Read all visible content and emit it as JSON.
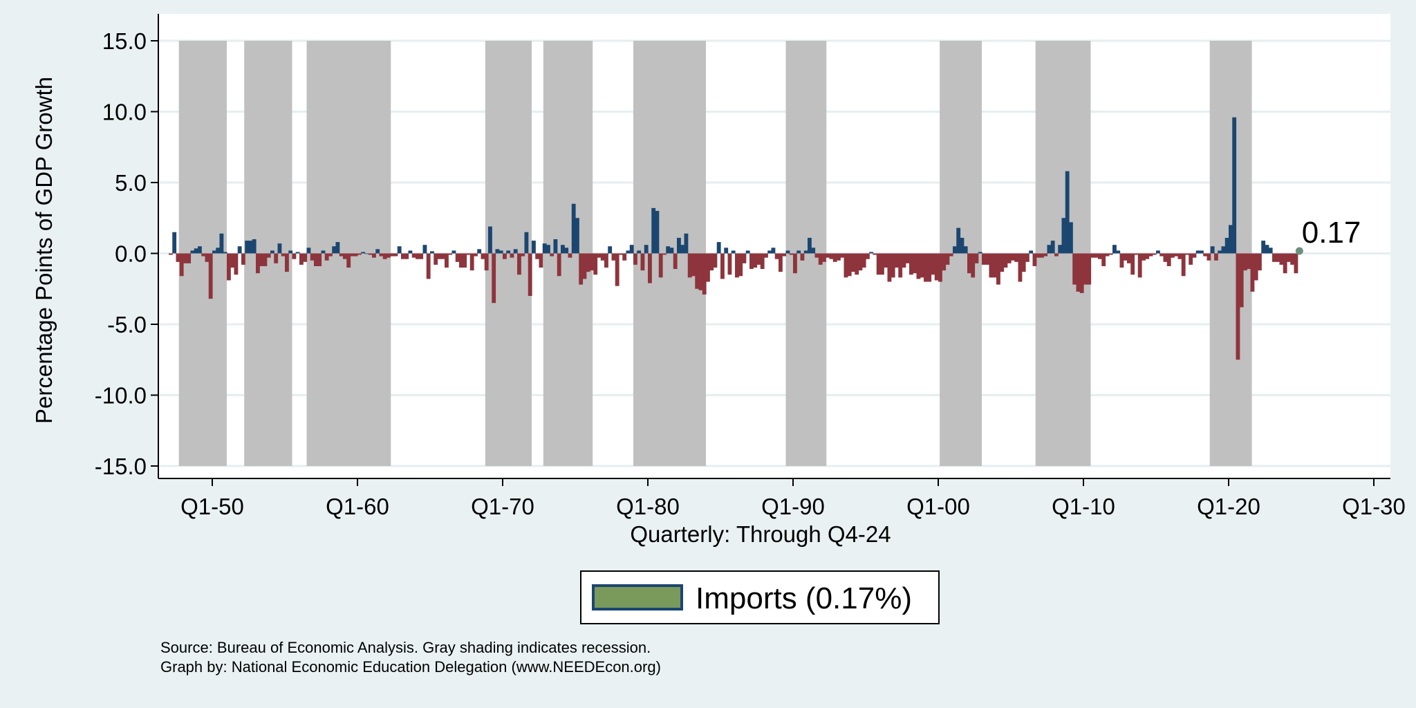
{
  "chart_data": {
    "type": "bar",
    "title": "",
    "xlabel": "Quarterly: Through Q4-24",
    "ylabel": "Percentage Points of GDP Growth",
    "ylim": [
      -15,
      15
    ],
    "yticks": [
      15,
      10,
      5,
      0,
      -5,
      -10,
      -15
    ],
    "ytick_labels": [
      "15.0",
      "10.0",
      "5.0",
      "0.0",
      "-5.0",
      "-10.0",
      "-15.0"
    ],
    "xlim": [
      1947,
      2030
    ],
    "xticks": [
      1950,
      1960,
      1970,
      1980,
      1990,
      2000,
      2010,
      2020,
      2030
    ],
    "xtick_labels": [
      "Q1-50",
      "Q1-60",
      "Q1-70",
      "Q1-80",
      "Q1-90",
      "Q1-00",
      "Q1-10",
      "Q1-20",
      "Q1-30"
    ],
    "grid": true,
    "start_quarter": "Q1-47",
    "series": [
      {
        "name": "Imports (0.17%)",
        "values": [
          -0.1,
          1.5,
          -0.6,
          -1.6,
          -0.7,
          -0.7,
          0.2,
          0.35,
          0.5,
          -0.2,
          -0.6,
          -3.2,
          0.2,
          0.4,
          1.4,
          0.1,
          -1.9,
          -1.0,
          -1.5,
          0.5,
          -0.8,
          0.9,
          0.9,
          1.0,
          -1.4,
          -0.9,
          -0.9,
          -0.3,
          0.2,
          -0.7,
          0.7,
          -0.2,
          -1.3,
          0.2,
          -0.4,
          0.1,
          -0.8,
          -0.6,
          0.4,
          -0.5,
          -0.9,
          -0.9,
          0.2,
          -0.5,
          -0.2,
          0.5,
          0.8,
          -0.2,
          -0.4,
          -1.0,
          -0.2,
          -0.2,
          -0.1,
          0.1,
          0.0,
          -0.1,
          -0.3,
          0.3,
          -0.2,
          -0.4,
          -0.3,
          -0.2,
          -0.2,
          0.5,
          -0.4,
          -0.4,
          0.2,
          -0.3,
          -0.4,
          -0.4,
          0.6,
          -1.8,
          0.15,
          -0.8,
          -0.4,
          -0.4,
          -1.0,
          -0.1,
          0.2,
          -0.6,
          -1.0,
          -1.0,
          -0.1,
          -1.2,
          -0.2,
          0.3,
          -0.4,
          -1.2,
          1.9,
          -3.5,
          0.3,
          0.2,
          -0.4,
          0.2,
          -0.3,
          0.3,
          -1.5,
          -0.2,
          1.5,
          -3.0,
          0.9,
          -0.4,
          -1.0,
          0.7,
          0.6,
          -0.2,
          1.0,
          -1.6,
          0.6,
          0.4,
          -0.3,
          3.5,
          2.5,
          -2.2,
          -1.8,
          -1.3,
          -1.2,
          -1.5,
          -0.3,
          -0.5,
          -1.0,
          0.5,
          -0.5,
          -2.3,
          -0.1,
          -0.5,
          0.2,
          0.6,
          -0.8,
          0.2,
          -1.2,
          0.6,
          -2.1,
          3.2,
          3.0,
          -1.7,
          -0.1,
          0.5,
          0.4,
          -1.1,
          1.1,
          0.6,
          1.4,
          -1.7,
          -1.6,
          -2.5,
          -2.6,
          -2.9,
          -2.0,
          -1.2,
          -1.0,
          0.8,
          -1.8,
          0.4,
          -1.5,
          0.2,
          -1.7,
          -1.6,
          -0.7,
          0.2,
          -1.1,
          -1.0,
          -0.8,
          -1.1,
          -0.3,
          0.2,
          0.4,
          -0.4,
          -1.3,
          -0.2,
          0.2,
          -0.1,
          -1.4,
          0.2,
          -0.5,
          0.2,
          1.1,
          0.4,
          -0.3,
          -0.8,
          -0.6,
          -0.3,
          -0.4,
          -0.6,
          -0.5,
          -0.3,
          -1.7,
          -1.6,
          -1.3,
          -1.5,
          -1.2,
          -1.0,
          -0.4,
          0.1,
          -0.1,
          -1.5,
          -1.5,
          -1.0,
          -2.0,
          -1.7,
          -1.0,
          -1.7,
          -1.0,
          -0.7,
          -1.5,
          -1.4,
          -1.8,
          -1.7,
          -2.0,
          -2.0,
          -1.5,
          -1.9,
          -2.0,
          -1.2,
          -0.8,
          -0.2,
          0.5,
          1.8,
          1.1,
          0.5,
          -1.4,
          -1.7,
          -0.7,
          0.1,
          -0.8,
          -0.8,
          -1.7,
          -1.7,
          -2.2,
          -1.3,
          -1.0,
          -0.7,
          -0.5,
          -0.6,
          -2.0,
          -1.3,
          -0.6,
          0.2,
          -0.9,
          -0.3,
          -0.3,
          -0.2,
          0.6,
          0.9,
          -0.2,
          0.6,
          2.5,
          5.8,
          2.2,
          -2.2,
          -2.7,
          -2.8,
          -2.2,
          -2.2,
          -0.3,
          -0.3,
          -0.4,
          -0.9,
          -0.2,
          -0.1,
          0.6,
          0.2,
          -1.0,
          -0.5,
          -0.7,
          -1.5,
          -0.1,
          -1.7,
          -0.5,
          -0.4,
          -0.2,
          -0.1,
          0.2,
          -0.2,
          -0.6,
          -0.9,
          -0.3,
          -0.2,
          -0.4,
          -1.6,
          -0.1,
          -0.8,
          -0.3,
          0.2,
          0.2,
          -0.2,
          -0.5,
          0.5,
          -0.5,
          0.2,
          0.5,
          1.1,
          2.0,
          9.6,
          -7.5,
          -3.8,
          -1.2,
          -1.1,
          -2.7,
          -1.9,
          -1.2,
          0.9,
          0.6,
          0.4,
          -0.6,
          -0.6,
          -0.8,
          -1.4,
          -0.6,
          -0.8,
          -1.4,
          0.17
        ]
      }
    ],
    "recessions": [
      [
        1947.7,
        1951.0
      ],
      [
        1952.2,
        1955.5
      ],
      [
        1956.5,
        1962.3
      ],
      [
        1968.8,
        1972.0
      ],
      [
        1972.8,
        1976.2
      ],
      [
        1979.0,
        1984.0
      ],
      [
        1989.5,
        1992.3
      ],
      [
        2000.1,
        2003.0
      ],
      [
        2006.7,
        2010.5
      ],
      [
        2018.7,
        2021.6
      ]
    ],
    "last_value_label": "0.17",
    "legend": {
      "label": "Imports (0.17%)",
      "placement": "bottom-center"
    },
    "colors": {
      "positive": "#1b4670",
      "negative": "#8e343c",
      "recession": "#c0c0c0",
      "legend_fill": "#7a9a5c",
      "legend_border": "#1b4670",
      "last_point": "#6b9080",
      "background": "#e9f1f3",
      "grid": "#e6eef0"
    }
  },
  "footer": {
    "source": "Source: Bureau of Economic Analysis. Gray shading indicates recession.",
    "credit": "Graph by: National Economic Education Delegation (www.NEEDEcon.org)"
  }
}
